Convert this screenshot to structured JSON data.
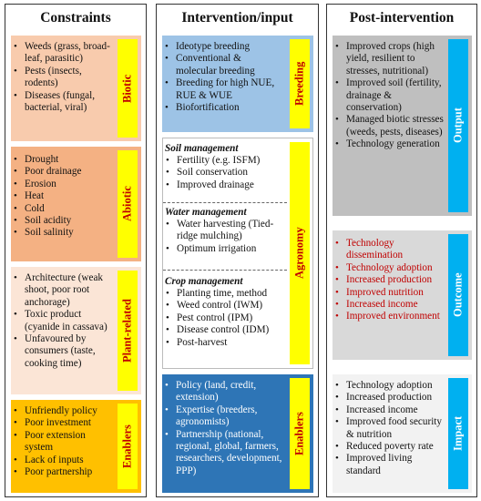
{
  "columns": {
    "constraints": {
      "title": "Constraints",
      "biotic": {
        "tag": "Biotic",
        "items": [
          "Weeds (grass, broad-leaf, parasitic)",
          "Pests (insects, rodents)",
          "Diseases (fungal, bacterial, viral)"
        ]
      },
      "abiotic": {
        "tag": "Abiotic",
        "items": [
          "Drought",
          "Poor drainage",
          "Erosion",
          "Heat",
          "Cold",
          "Soil acidity",
          "Soil salinity"
        ]
      },
      "plant_related": {
        "tag": "Plant-related",
        "items": [
          "Architecture (weak shoot, poor root anchorage)",
          "Toxic product (cyanide in cassava)",
          "Unfavoured by consumers (taste, cooking time)"
        ]
      },
      "enablers": {
        "tag": "Enablers",
        "items": [
          "Unfriendly policy",
          "Poor investment",
          "Poor extension system",
          "Lack of inputs",
          "Poor partnership"
        ]
      }
    },
    "intervention": {
      "title": "Intervention/input",
      "breeding": {
        "tag": "Breeding",
        "items": [
          "Ideotype breeding",
          "Conventional & molecular breeding",
          "Breeding for high NUE, RUE & WUE",
          "Biofortification"
        ]
      },
      "agronomy": {
        "tag": "Agronomy",
        "soil": {
          "heading": "Soil management",
          "items": [
            "Fertility (e.g. ISFM)",
            "Soil conservation",
            "Improved drainage"
          ]
        },
        "water": {
          "heading": "Water management",
          "items": [
            "Water harvesting (Tied-ridge mulching)",
            "Optimum irrigation"
          ]
        },
        "crop": {
          "heading": "Crop management",
          "items": [
            "Planting time, method",
            "Weed control (IWM)",
            "Pest control (IPM)",
            "Disease control (IDM)",
            "Post-harvest"
          ]
        }
      },
      "enablers": {
        "tag": "Enablers",
        "items": [
          "Policy (land, credit, extension)",
          "Expertise (breeders, agronomists)",
          "Partnership (national, regional, global, farmers, researchers, development, PPP)"
        ]
      }
    },
    "post": {
      "title": "Post-intervention",
      "output": {
        "tag": "Output",
        "items": [
          "Improved crops (high yield, resilient to stresses, nutritional)",
          "Improved soil (fertility, drainage & conservation)",
          "Managed biotic stresses (weeds, pests, diseases)",
          "Technology generation"
        ]
      },
      "outcome": {
        "tag": "Outcome",
        "items": [
          "Technology dissemination",
          "Technology adoption",
          "Increased production",
          "Improved nutrition",
          "Increased income",
          "Improved environment"
        ]
      },
      "impact": {
        "tag": "Impact",
        "items": [
          "Technology adoption",
          "Increased production",
          "Increased income",
          "Improved food security & nutrition",
          "Reduced poverty rate",
          "Improved living standard"
        ]
      }
    }
  },
  "colors": {
    "biotic_bg": "#f8cbad",
    "abiotic_bg": "#f4b183",
    "plant_bg": "#fbe5d6",
    "enablers_bg": "#ffc000",
    "tag_yellow": "#ffff00",
    "breeding_bg": "#9dc3e6",
    "agronomy_bg": "#ffffff",
    "intervention_enablers_bg": "#2e75b6",
    "output_bg": "#bfbfbf",
    "outcome_bg": "#d9d9d9",
    "impact_bg": "#f2f2f2",
    "tag_blue": "#00b0f0",
    "outcome_text": "#c00000"
  }
}
